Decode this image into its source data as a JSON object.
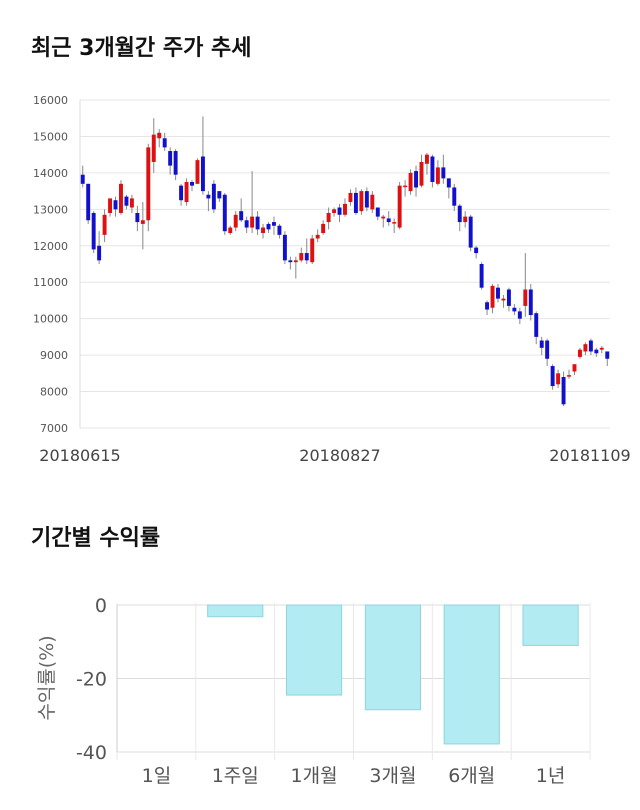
{
  "sections": {
    "price_title": "최근 3개월간 주가 추세",
    "returns_title": "기간별 수익률"
  },
  "colors": {
    "up": "#dd1111",
    "down": "#1111cc",
    "bar_fill": "#b2ebf2",
    "bar_stroke": "#8fd4de",
    "grid": "#e6e6e6"
  },
  "chart_data": [
    {
      "type": "candlestick",
      "title": "최근 3개월간 주가 추세",
      "ylim": [
        7000,
        16000
      ],
      "y_ticks": [
        "16000",
        "15000",
        "14000",
        "13000",
        "12000",
        "11000",
        "10000",
        "9000",
        "8000",
        "7000"
      ],
      "x_ticks": [
        "20180615",
        "20180827",
        "20181109"
      ],
      "grid": true,
      "candles": [
        [
          13950,
          13700,
          14200,
          13600
        ],
        [
          13700,
          12700,
          13700,
          12600
        ],
        [
          12900,
          11900,
          12950,
          11800
        ],
        [
          12000,
          11600,
          12400,
          11500
        ],
        [
          12300,
          12850,
          13000,
          12100
        ],
        [
          12900,
          13300,
          13300,
          12800
        ],
        [
          13250,
          13000,
          13350,
          12800
        ],
        [
          12900,
          13700,
          13800,
          12850
        ],
        [
          13350,
          13100,
          13400,
          13000
        ],
        [
          13050,
          13300,
          13400,
          12900
        ],
        [
          12900,
          12650,
          13100,
          12400
        ],
        [
          12600,
          12700,
          13200,
          11900
        ],
        [
          12700,
          14700,
          14800,
          12400
        ],
        [
          14300,
          15050,
          15500,
          14000
        ],
        [
          14950,
          15100,
          15200,
          14700
        ],
        [
          14950,
          14700,
          15100,
          14600
        ],
        [
          14600,
          14200,
          14700,
          13950
        ],
        [
          14600,
          13950,
          14650,
          13800
        ],
        [
          13650,
          13250,
          13700,
          13100
        ],
        [
          13200,
          13750,
          13850,
          13100
        ],
        [
          13750,
          13650,
          13800,
          13500
        ],
        [
          13700,
          14350,
          14400,
          13700
        ],
        [
          14450,
          13500,
          15550,
          13400
        ],
        [
          13400,
          13300,
          13500,
          12950
        ],
        [
          13700,
          13000,
          13800,
          12900
        ],
        [
          13500,
          13300,
          13500,
          13200
        ],
        [
          13400,
          12400,
          13450,
          12300
        ],
        [
          12350,
          12500,
          12550,
          12300
        ],
        [
          12500,
          12850,
          12950,
          12400
        ],
        [
          12950,
          12700,
          13300,
          12650
        ],
        [
          12700,
          12500,
          12800,
          12350
        ],
        [
          12500,
          12800,
          14050,
          12350
        ],
        [
          12800,
          12450,
          12950,
          12300
        ],
        [
          12350,
          12500,
          12600,
          12200
        ],
        [
          12600,
          12450,
          12650,
          12350
        ],
        [
          12650,
          12550,
          12800,
          12300
        ],
        [
          12550,
          12300,
          12600,
          12200
        ],
        [
          12300,
          11600,
          12400,
          11500
        ],
        [
          11600,
          11550,
          11700,
          11350
        ],
        [
          11550,
          11600,
          11700,
          11100
        ],
        [
          11600,
          11800,
          11950,
          11550
        ],
        [
          11800,
          11600,
          12200,
          11500
        ],
        [
          11550,
          12200,
          12300,
          11500
        ],
        [
          12200,
          12300,
          12450,
          12100
        ],
        [
          12350,
          12600,
          12700,
          12300
        ],
        [
          12650,
          12900,
          13050,
          12450
        ],
        [
          12900,
          13000,
          13050,
          12800
        ],
        [
          13050,
          12850,
          13150,
          12650
        ],
        [
          12850,
          13150,
          13300,
          12800
        ],
        [
          13200,
          13450,
          13550,
          13100
        ],
        [
          13450,
          12900,
          13600,
          12850
        ],
        [
          12950,
          13500,
          13550,
          12850
        ],
        [
          13500,
          13050,
          13600,
          12950
        ],
        [
          13000,
          13400,
          13500,
          12900
        ],
        [
          13050,
          12800,
          13050,
          12700
        ],
        [
          12750,
          12800,
          12850,
          12500
        ],
        [
          12750,
          12650,
          12950,
          12550
        ],
        [
          12650,
          12650,
          12750,
          12350
        ],
        [
          12500,
          13650,
          13750,
          12450
        ],
        [
          13650,
          13650,
          13800,
          13350
        ],
        [
          13500,
          14000,
          14100,
          13400
        ],
        [
          14050,
          13600,
          14200,
          13350
        ],
        [
          13650,
          14300,
          14500,
          13600
        ],
        [
          14250,
          14500,
          14550,
          13950
        ],
        [
          14450,
          13750,
          14500,
          13600
        ],
        [
          13700,
          14150,
          14350,
          13650
        ],
        [
          14150,
          13850,
          14500,
          13700
        ],
        [
          13850,
          13600,
          13850,
          13300
        ],
        [
          13600,
          13100,
          13700,
          12950
        ],
        [
          13100,
          12650,
          13150,
          12400
        ],
        [
          12650,
          12800,
          12950,
          12500
        ],
        [
          12800,
          11950,
          12850,
          11850
        ],
        [
          11950,
          11800,
          12000,
          11650
        ],
        [
          11500,
          10850,
          11550,
          10800
        ],
        [
          10450,
          10250,
          10500,
          10100
        ],
        [
          10300,
          10900,
          10950,
          10150
        ],
        [
          10850,
          10550,
          10950,
          10450
        ],
        [
          10500,
          10550,
          10650,
          10300
        ],
        [
          10800,
          10350,
          10850,
          10200
        ],
        [
          10300,
          10200,
          10400,
          10100
        ],
        [
          10200,
          10000,
          10300,
          9850
        ],
        [
          10350,
          10800,
          11800,
          10050
        ],
        [
          10800,
          10100,
          10950,
          9950
        ],
        [
          10150,
          9500,
          10200,
          9300
        ],
        [
          9400,
          9200,
          9500,
          9000
        ],
        [
          9400,
          8900,
          9450,
          8700
        ],
        [
          8700,
          8150,
          8750,
          8050
        ],
        [
          8200,
          8500,
          8600,
          8100
        ],
        [
          8400,
          7650,
          8550,
          7600
        ],
        [
          8450,
          8450,
          8600,
          8350
        ],
        [
          8550,
          8750,
          8750,
          8450
        ],
        [
          8950,
          9150,
          9200,
          8900
        ],
        [
          9100,
          9300,
          9350,
          9000
        ],
        [
          9400,
          9100,
          9450,
          9000
        ],
        [
          9150,
          9050,
          9200,
          8950
        ],
        [
          9150,
          9200,
          9250,
          9050
        ],
        [
          9100,
          8900,
          9100,
          8700
        ]
      ]
    },
    {
      "type": "bar",
      "title": "기간별 수익률",
      "ylabel": "수익률(%)",
      "ylim": [
        -40,
        0
      ],
      "y_ticks": [
        "0",
        "-20",
        "-40"
      ],
      "categories": [
        "1일",
        "1주일",
        "1개월",
        "3개월",
        "6개월",
        "1년"
      ],
      "values": [
        0,
        -3.2,
        -24.5,
        -28.5,
        -37.8,
        -11.0
      ],
      "grid": true
    }
  ]
}
